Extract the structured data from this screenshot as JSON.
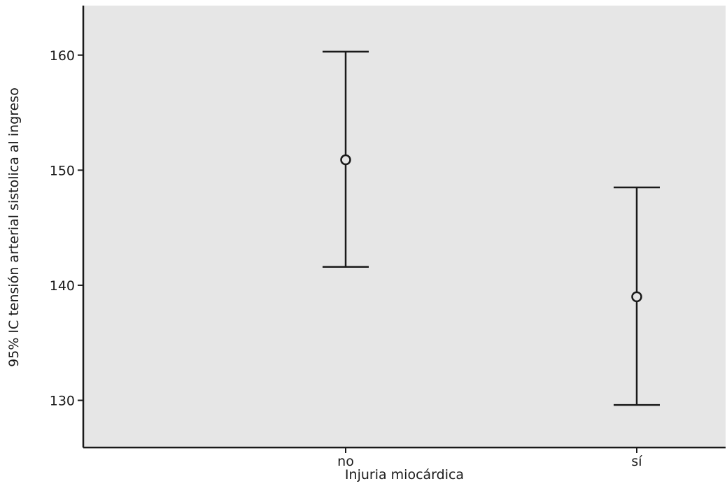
{
  "chart_data": {
    "type": "errorbar",
    "xlabel": "Injuria miocárdica",
    "ylabel": "95% IC tensión arterial sistolica al ingreso",
    "categories": [
      "no",
      "sí"
    ],
    "series": [
      {
        "mean": [
          150.9,
          139.0
        ],
        "lower": [
          141.6,
          129.6
        ],
        "upper": [
          160.3,
          148.5
        ]
      }
    ],
    "ylim": [
      125.9,
      164.3
    ],
    "yticks": [
      130,
      140,
      150,
      160
    ],
    "grid": false,
    "colors": {
      "plot_background": "#e6e6e6",
      "mark": "#1a1a1a"
    }
  }
}
